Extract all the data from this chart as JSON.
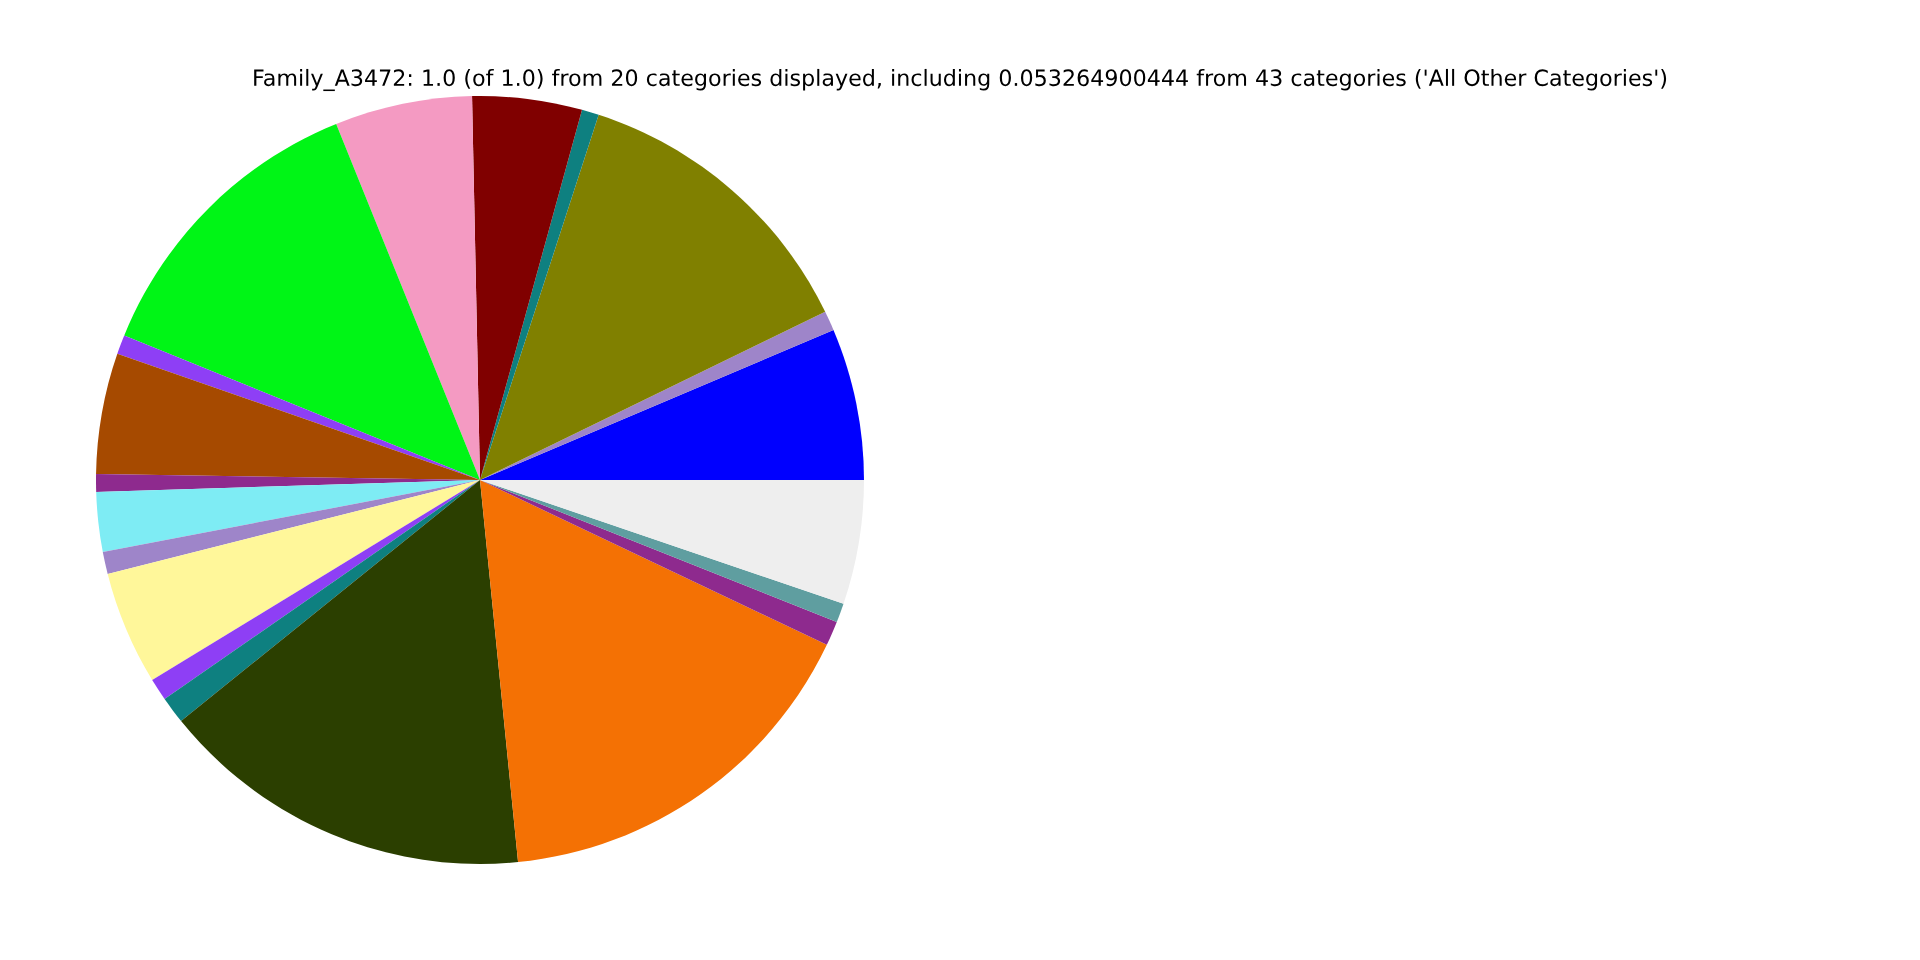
{
  "chart_data": {
    "type": "pie",
    "title": "Family_A3472: 1.0 (of 1.0) from 20 categories displayed, including 0.053264900444 from 43 categories ('All Other Categories')",
    "categories": [
      null,
      null,
      null,
      null,
      null,
      null,
      null,
      null,
      null,
      null,
      null,
      null,
      null,
      null,
      null,
      null,
      null,
      null,
      null,
      null
    ],
    "values": [
      6.39,
      0.83,
      12.78,
      0.72,
      4.61,
      5.78,
      12.75,
      0.81,
      5.08,
      0.75,
      2.5,
      0.94,
      4.78,
      0.94,
      1.14,
      15.78,
      16.36,
      1.03,
      0.81,
      5.22
    ],
    "colors": [
      "#0000ff",
      "#9e85c9",
      "#808000",
      "#0e8080",
      "#800000",
      "#f49ac2",
      "#00f516",
      "#8e3ff5",
      "#a64a00",
      "#8e2a8e",
      "#7eecf4",
      "#9e85c9",
      "#fff79a",
      "#8e3ff5",
      "#0e8080",
      "#2b3f00",
      "#f47104",
      "#8e2a8e",
      "#5f9ea0",
      "#eeeeee"
    ],
    "legend": false
  }
}
